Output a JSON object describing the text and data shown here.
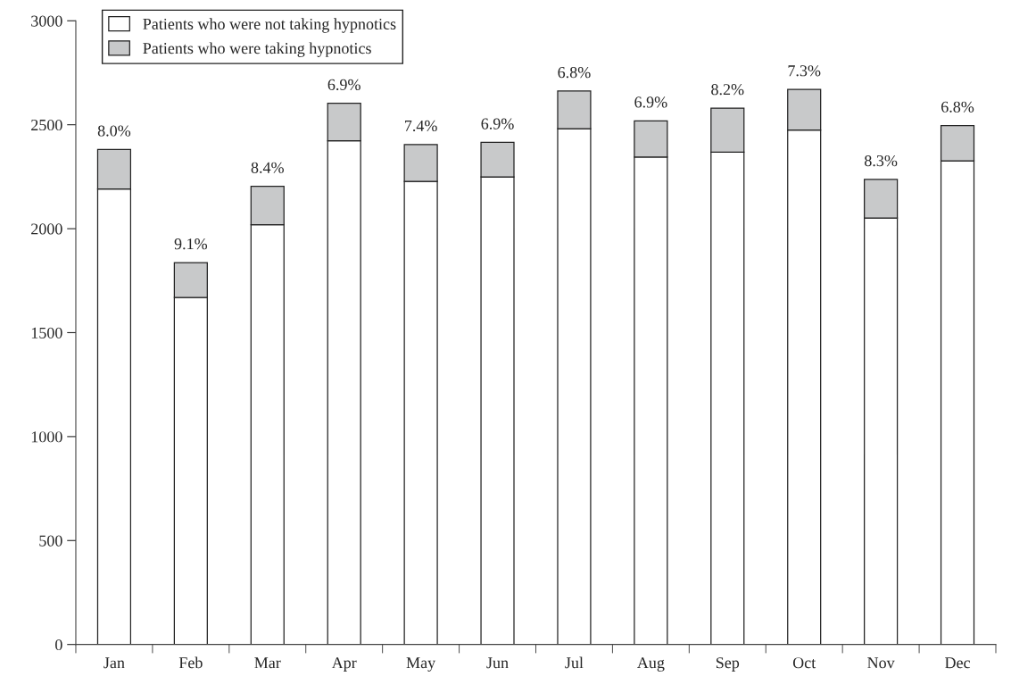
{
  "chart_data": {
    "type": "bar",
    "stacked": true,
    "categories": [
      "Jan",
      "Feb",
      "Mar",
      "Apr",
      "May",
      "Jun",
      "Jul",
      "Aug",
      "Sep",
      "Oct",
      "Nov",
      "Dec"
    ],
    "series": [
      {
        "name": "Patients who were not taking hypnotics",
        "color": "#ffffff",
        "values": [
          2191,
          1669,
          2019,
          2423,
          2228,
          2249,
          2481,
          2345,
          2368,
          2475,
          2051,
          2326
        ]
      },
      {
        "name": "Patients who were taking hypnotics",
        "color": "#c8c9ca",
        "values": [
          190,
          168,
          185,
          180,
          177,
          166,
          181,
          174,
          212,
          195,
          186,
          170
        ]
      }
    ],
    "annotations": [
      {
        "text": "8.0%",
        "x": "Jan",
        "y": 2381
      },
      {
        "text": "9.1%",
        "x": "Feb",
        "y": 1837
      },
      {
        "text": "8.4%",
        "x": "Mar",
        "y": 2204
      },
      {
        "text": "6.9%",
        "x": "Apr",
        "y": 2603
      },
      {
        "text": "7.4%",
        "x": "May",
        "y": 2405
      },
      {
        "text": "6.9%",
        "x": "Jun",
        "y": 2415
      },
      {
        "text": "6.8%",
        "x": "Jul",
        "y": 2662
      },
      {
        "text": "6.9%",
        "x": "Aug",
        "y": 2519
      },
      {
        "text": "8.2%",
        "x": "Sep",
        "y": 2580
      },
      {
        "text": "7.3%",
        "x": "Oct",
        "y": 2670
      },
      {
        "text": "8.3%",
        "x": "Nov",
        "y": 2237
      },
      {
        "text": "6.8%",
        "x": "Dec",
        "y": 2496
      }
    ],
    "ylim": [
      0,
      3000
    ],
    "yticks": [
      0,
      500,
      1000,
      1500,
      2000,
      2500,
      3000
    ],
    "grid": false,
    "legend": "top left"
  }
}
